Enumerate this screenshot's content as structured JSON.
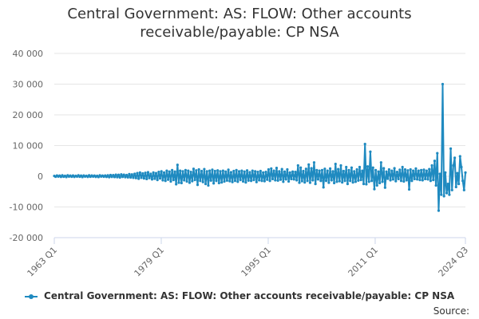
{
  "chart_data": {
    "type": "line",
    "title_lines": [
      "Central Government: AS: FLOW: Other accounts",
      "receivable/payable: CP NSA"
    ],
    "x_tick_labels": [
      "1963 Q1",
      "1979 Q1",
      "1995 Q1",
      "2011 Q1",
      "2024 Q3"
    ],
    "x_start": "1963 Q1",
    "x_end": "2024 Q3",
    "ylim": [
      -20000,
      40000
    ],
    "y_ticks": [
      -20000,
      -10000,
      0,
      10000,
      20000,
      30000,
      40000
    ],
    "y_tick_labels": [
      "-20 000",
      "-10 000",
      "0",
      "10 000",
      "20 000",
      "30 000",
      "40 000"
    ],
    "grid": true,
    "legend_position": "bottom",
    "series": [
      {
        "name": "Central Government: AS: FLOW: Other accounts receivable/payable: CP NSA",
        "color": "#1f8ac0",
        "values": [
          100,
          -150,
          250,
          -100,
          200,
          -200,
          300,
          -150,
          150,
          -250,
          300,
          -100,
          200,
          -150,
          250,
          -200,
          150,
          -100,
          300,
          -150,
          200,
          -250,
          250,
          -100,
          150,
          -200,
          300,
          -150,
          250,
          -100,
          200,
          -200,
          150,
          -250,
          300,
          -100,
          200,
          -150,
          250,
          -200,
          300,
          -300,
          400,
          -200,
          350,
          -250,
          500,
          -300,
          450,
          -400,
          600,
          -200,
          500,
          -300,
          400,
          -350,
          700,
          -400,
          600,
          -500,
          800,
          -600,
          1000,
          -800,
          1200,
          -500,
          900,
          -700,
          1100,
          -900,
          1300,
          -600,
          800,
          -1000,
          1200,
          -800,
          1000,
          -1200,
          1400,
          -700,
          1600,
          -1300,
          1200,
          -1500,
          1800,
          -1100,
          1500,
          -1700,
          2000,
          -1200,
          1500,
          -2600,
          3700,
          -2100,
          1800,
          -2200,
          1600,
          -1300,
          2000,
          -1700,
          1800,
          -2100,
          1400,
          -1600,
          2400,
          -1200,
          1900,
          -2800,
          2200,
          -1500,
          1700,
          -1900,
          2300,
          -2500,
          1600,
          -3000,
          1800,
          -1400,
          2100,
          -2300,
          1700,
          -1500,
          1900,
          -2200,
          1600,
          -2000,
          1800,
          -1700,
          1500,
          -1400,
          2100,
          -1600,
          1300,
          -1900,
          1700,
          -1500,
          2000,
          -1800,
          1600,
          -1200,
          1800,
          -1700,
          1500,
          -2000,
          1900,
          -1400,
          1300,
          -1500,
          1800,
          -1200,
          1600,
          -1900,
          1400,
          -1300,
          1700,
          -1500,
          1200,
          -1600,
          1400,
          -1100,
          2200,
          -1500,
          2500,
          -900,
          1800,
          -1300,
          2700,
          -1400,
          1600,
          -1100,
          2300,
          -1800,
          1500,
          -1000,
          2200,
          -1700,
          1200,
          -900,
          1500,
          -1000,
          1400,
          -1300,
          3500,
          -2100,
          2800,
          -1600,
          1700,
          -2000,
          2400,
          -1500,
          3800,
          -2100,
          2600,
          -1300,
          4500,
          -2500,
          2000,
          -1000,
          1800,
          -1500,
          2000,
          -3600,
          2400,
          -1500,
          1800,
          -2100,
          2500,
          -1300,
          1600,
          -2200,
          4000,
          -1800,
          2300,
          -1600,
          3500,
          -2000,
          1700,
          -1500,
          3000,
          -2500,
          2000,
          -1500,
          2800,
          -2000,
          1600,
          -1800,
          2200,
          -1400,
          3000,
          -1200,
          1800,
          -2500,
          10500,
          -2600,
          3200,
          -1800,
          8000,
          -1500,
          2800,
          -4200,
          2000,
          -3000,
          1500,
          -2200,
          4500,
          -1800,
          2600,
          -3700,
          1500,
          -800,
          2200,
          -1300,
          1800,
          -1000,
          2600,
          -1600,
          1400,
          -900,
          2100,
          -1500,
          3000,
          -1700,
          2200,
          -1300,
          1900,
          -4300,
          2200,
          -1500,
          1800,
          -900,
          2500,
          -1000,
          1800,
          -1200,
          2000,
          -1300,
          2100,
          -900,
          1800,
          -1000,
          2300,
          -1500,
          3500,
          -1200,
          5000,
          -3000,
          7500,
          -11200,
          800,
          -6000,
          30000,
          -6500,
          1200,
          -5500,
          -2500,
          -6000,
          9000,
          -4500,
          3500,
          6000,
          -3500,
          1000,
          -2500,
          6500,
          3000,
          -1500,
          -4500,
          1200
        ]
      }
    ]
  },
  "source": {
    "label": "Source:"
  }
}
